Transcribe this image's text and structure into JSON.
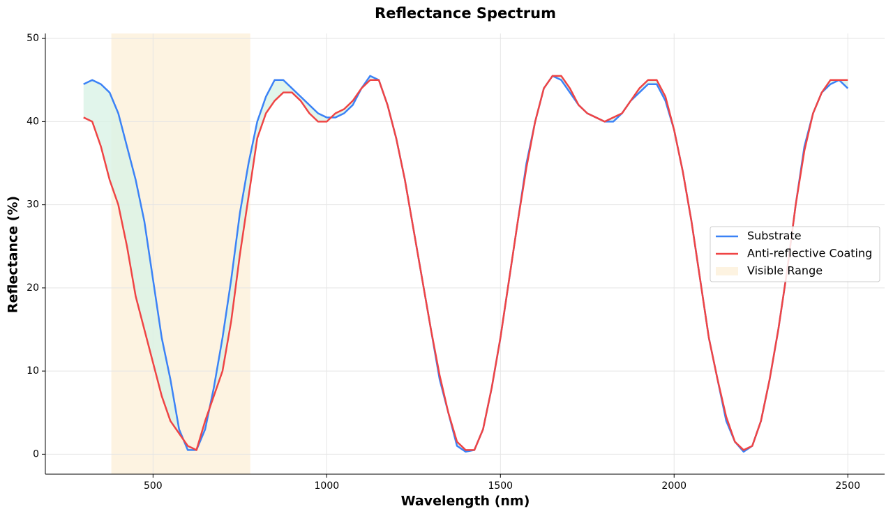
{
  "chart_data": {
    "type": "line",
    "title": "Reflectance Spectrum",
    "x_label": "Wavelength (nm)",
    "y_label": "Reflectance (%)",
    "x": [
      300,
      325,
      350,
      375,
      400,
      425,
      450,
      475,
      500,
      525,
      550,
      575,
      600,
      625,
      650,
      675,
      700,
      725,
      750,
      775,
      800,
      825,
      850,
      875,
      900,
      925,
      950,
      975,
      1000,
      1025,
      1050,
      1075,
      1100,
      1125,
      1150,
      1175,
      1200,
      1225,
      1250,
      1275,
      1300,
      1325,
      1350,
      1375,
      1400,
      1425,
      1450,
      1475,
      1500,
      1525,
      1550,
      1575,
      1600,
      1625,
      1650,
      1675,
      1700,
      1725,
      1750,
      1775,
      1800,
      1825,
      1850,
      1875,
      1900,
      1925,
      1950,
      1975,
      2000,
      2025,
      2050,
      2075,
      2100,
      2125,
      2150,
      2175,
      2200,
      2225,
      2250,
      2275,
      2300,
      2325,
      2350,
      2375,
      2400,
      2425,
      2450,
      2475,
      2500
    ],
    "series": [
      {
        "name": "Substrate",
        "color": "#3b82f6",
        "values": [
          44.5,
          45,
          44.5,
          43.5,
          41,
          37,
          33,
          28,
          21,
          14,
          9,
          3,
          0.5,
          0.5,
          3,
          8,
          14,
          21,
          29,
          35,
          40,
          43,
          45,
          45,
          44,
          43,
          42,
          41,
          40.5,
          40.5,
          41,
          42,
          44,
          45.5,
          45,
          42,
          38,
          33,
          27,
          21,
          15,
          9,
          5,
          1,
          0.3,
          0.5,
          3,
          8,
          14,
          21,
          28,
          35,
          40,
          44,
          45.5,
          45,
          43.5,
          42,
          41,
          40.5,
          40,
          40,
          41,
          42.5,
          43.5,
          44.5,
          44.5,
          42.5,
          39,
          34,
          28,
          21,
          14,
          9,
          4,
          1.5,
          0.3,
          1,
          4,
          9,
          15,
          22,
          30,
          37,
          41,
          43.5,
          44.5,
          45,
          44
        ]
      },
      {
        "name": "Anti-reflective Coating",
        "color": "#ef4444",
        "values": [
          40.5,
          40,
          37,
          33,
          30,
          25,
          19,
          15,
          11,
          7,
          4,
          2.5,
          1,
          0.5,
          4,
          7,
          10,
          16,
          24,
          31,
          38,
          41,
          42.5,
          43.5,
          43.5,
          42.5,
          41,
          40,
          40,
          41,
          41.5,
          42.5,
          44,
          45,
          45,
          42,
          38,
          33,
          27,
          21,
          15,
          9.5,
          5,
          1.5,
          0.5,
          0.5,
          3,
          8,
          14,
          21,
          28,
          34.5,
          40,
          44,
          45.5,
          45.5,
          44,
          42,
          41,
          40.5,
          40,
          40.5,
          41,
          42.5,
          44,
          45,
          45,
          43,
          39,
          34,
          28,
          21,
          14,
          9,
          4.5,
          1.5,
          0.5,
          1,
          4,
          9,
          15,
          22,
          30,
          36.5,
          41,
          43.5,
          45,
          45,
          45
        ]
      }
    ],
    "shade": {
      "name": "Visible Range",
      "from": 380,
      "to": 780,
      "color": "#fdf3e1"
    },
    "fill_between_color": "#d9f2e6",
    "xlim": [
      190,
      2606
    ],
    "ylim": [
      -2.4,
      50.6
    ],
    "xticks": [
      500,
      1000,
      1500,
      2000,
      2500
    ],
    "yticks": [
      0,
      10,
      20,
      30,
      40,
      50
    ],
    "grid": true,
    "legend": "right"
  }
}
